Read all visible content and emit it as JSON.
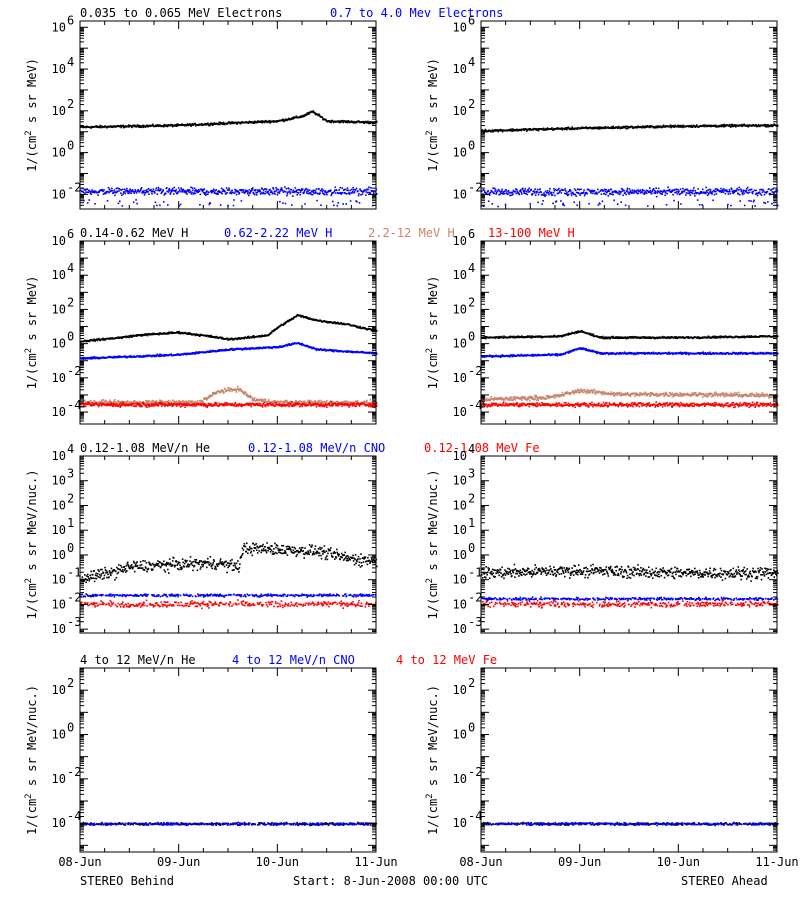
{
  "footer": {
    "left": "STEREO Behind",
    "center": "Start:  8-Jun-2008 00:00 UTC",
    "right": "STEREO Ahead"
  },
  "colors": {
    "black": "#000000",
    "blue": "#0000ff",
    "tan": "#c8846c",
    "red": "#ff0000"
  },
  "chart_data": [
    {
      "type": "scatter",
      "panel": "electrons",
      "legend": [
        {
          "label": "0.035 to 0.065 MeV Electrons",
          "color": "#000000"
        },
        {
          "label": "0.7 to 4.0 Mev Electrons",
          "color": "#0000ff"
        }
      ],
      "ylabel": "1/(cm2 s sr MeV)",
      "yscale": "log",
      "ylim": [
        0.002,
        2000000
      ],
      "ytick_exponents": [
        -2,
        0,
        2,
        4,
        6
      ],
      "x_ticks": [
        "08-Jun",
        "09-Jun",
        "10-Jun",
        "11-Jun"
      ],
      "xlim": [
        "08-Jun",
        "11-Jun"
      ],
      "series": [
        {
          "color": "#000000",
          "level_profile": [
            [
              0,
              18
            ],
            [
              1,
              22
            ],
            [
              1.5,
              28
            ],
            [
              2.0,
              35
            ],
            [
              2.25,
              60
            ],
            [
              2.35,
              100
            ],
            [
              2.5,
              35
            ],
            [
              3,
              30
            ]
          ]
        },
        {
          "color": "#0000ff",
          "level_profile": [
            [
              0,
              0.015
            ],
            [
              3,
              0.015
            ]
          ]
        }
      ]
    },
    {
      "type": "scatter",
      "panel": "electrons",
      "legend": [],
      "ylabel": "1/(cm2 s sr MeV)",
      "yscale": "log",
      "ylim": [
        0.002,
        2000000
      ],
      "ytick_exponents": [
        -2,
        0,
        2,
        4,
        6
      ],
      "x_ticks": [
        "08-Jun",
        "09-Jun",
        "10-Jun",
        "11-Jun"
      ],
      "xlim": [
        "08-Jun",
        "11-Jun"
      ],
      "series": [
        {
          "color": "#000000",
          "level_profile": [
            [
              0,
              12
            ],
            [
              1,
              16
            ],
            [
              2,
              20
            ],
            [
              3,
              22
            ]
          ]
        },
        {
          "color": "#0000ff",
          "level_profile": [
            [
              0,
              0.014
            ],
            [
              3,
              0.015
            ]
          ]
        }
      ]
    },
    {
      "type": "scatter",
      "panel": "protons",
      "legend": [
        {
          "label": "0.14-0.62 MeV H",
          "color": "#000000"
        },
        {
          "label": "0.62-2.22 MeV H",
          "color": "#0000ff"
        },
        {
          "label": "2.2-12 MeV H",
          "color": "#c8846c"
        },
        {
          "label": "13-100 MeV H",
          "color": "#ff0000"
        }
      ],
      "ylabel": "1/(cm2 s sr MeV)",
      "yscale": "log",
      "ylim": [
        2e-05,
        1000000
      ],
      "ytick_exponents": [
        -4,
        -2,
        0,
        2,
        4,
        6
      ],
      "x_ticks": [
        "08-Jun",
        "09-Jun",
        "10-Jun",
        "11-Jun"
      ],
      "xlim": [
        "08-Jun",
        "11-Jun"
      ],
      "series": [
        {
          "color": "#000000",
          "level_profile": [
            [
              0,
              1.5
            ],
            [
              0.4,
              2.5
            ],
            [
              0.6,
              3.5
            ],
            [
              1.0,
              5
            ],
            [
              1.3,
              3
            ],
            [
              1.5,
              2
            ],
            [
              1.7,
              2.5
            ],
            [
              1.9,
              3.5
            ],
            [
              2.0,
              10
            ],
            [
              2.2,
              50
            ],
            [
              2.4,
              25
            ],
            [
              2.7,
              15
            ],
            [
              3,
              6
            ]
          ]
        },
        {
          "color": "#0000ff",
          "level_profile": [
            [
              0,
              0.15
            ],
            [
              1.0,
              0.25
            ],
            [
              1.5,
              0.5
            ],
            [
              2.0,
              0.7
            ],
            [
              2.2,
              1.2
            ],
            [
              2.4,
              0.5
            ],
            [
              3,
              0.3
            ]
          ]
        },
        {
          "color": "#c8846c",
          "level_profile": [
            [
              0,
              0.0004
            ],
            [
              1.2,
              0.0004
            ],
            [
              1.4,
              0.0018
            ],
            [
              1.6,
              0.0025
            ],
            [
              1.75,
              0.0006
            ],
            [
              2,
              0.0004
            ],
            [
              3,
              0.0004
            ]
          ]
        },
        {
          "color": "#ff0000",
          "level_profile": [
            [
              0,
              0.0003
            ],
            [
              3,
              0.0003
            ]
          ]
        }
      ]
    },
    {
      "type": "scatter",
      "panel": "protons",
      "legend": [],
      "ylabel": "1/(cm2 s sr MeV)",
      "yscale": "log",
      "ylim": [
        2e-05,
        1000000
      ],
      "ytick_exponents": [
        -4,
        -2,
        0,
        2,
        4,
        6
      ],
      "x_ticks": [
        "08-Jun",
        "09-Jun",
        "10-Jun",
        "11-Jun"
      ],
      "xlim": [
        "08-Jun",
        "11-Jun"
      ],
      "series": [
        {
          "color": "#000000",
          "level_profile": [
            [
              0,
              2.5
            ],
            [
              0.8,
              3
            ],
            [
              1.0,
              6
            ],
            [
              1.2,
              2.5
            ],
            [
              2,
              2.5
            ],
            [
              3,
              3
            ]
          ]
        },
        {
          "color": "#0000ff",
          "level_profile": [
            [
              0,
              0.2
            ],
            [
              0.8,
              0.25
            ],
            [
              1.0,
              0.6
            ],
            [
              1.2,
              0.3
            ],
            [
              3,
              0.3
            ]
          ]
        },
        {
          "color": "#c8846c",
          "level_profile": [
            [
              0,
              0.0006
            ],
            [
              0.7,
              0.0008
            ],
            [
              1.0,
              0.002
            ],
            [
              1.4,
              0.0012
            ],
            [
              2.2,
              0.0012
            ],
            [
              3,
              0.001
            ]
          ]
        },
        {
          "color": "#ff0000",
          "level_profile": [
            [
              0,
              0.0003
            ],
            [
              3,
              0.0003
            ]
          ]
        }
      ]
    },
    {
      "type": "scatter",
      "panel": "heavy-low",
      "legend": [
        {
          "label": "0.12-1.08 MeV/n He",
          "color": "#000000"
        },
        {
          "label": "0.12-1.08 MeV/n CNO",
          "color": "#0000ff"
        },
        {
          "label": "0.12-1.08 MeV Fe",
          "color": "#ff0000"
        }
      ],
      "ylabel": "1/(cm2 s sr MeV/nuc.)",
      "yscale": "log",
      "ylim": [
        0.0007,
        10000
      ],
      "ytick_exponents": [
        -3,
        -2,
        -1,
        0,
        1,
        2,
        3,
        4
      ],
      "x_ticks": [
        "08-Jun",
        "09-Jun",
        "10-Jun",
        "11-Jun"
      ],
      "xlim": [
        "08-Jun",
        "11-Jun"
      ],
      "series": [
        {
          "color": "#000000",
          "level_profile": [
            [
              0,
              0.12
            ],
            [
              0.3,
              0.2
            ],
            [
              0.5,
              0.35
            ],
            [
              1.0,
              0.45
            ],
            [
              1.4,
              0.5
            ],
            [
              1.6,
              0.35
            ],
            [
              1.65,
              2.0
            ],
            [
              2.0,
              1.8
            ],
            [
              2.4,
              1.5
            ],
            [
              2.7,
              0.8
            ],
            [
              3,
              0.6
            ]
          ]
        },
        {
          "color": "#0000ff",
          "level_profile": [
            [
              0,
              0.025
            ],
            [
              3,
              0.025
            ]
          ]
        },
        {
          "color": "#ff0000",
          "level_profile": [
            [
              0,
              0.011
            ],
            [
              3,
              0.011
            ]
          ]
        }
      ]
    },
    {
      "type": "scatter",
      "panel": "heavy-low",
      "legend": [],
      "ylabel": "1/(cm2 s sr MeV/nuc.)",
      "yscale": "log",
      "ylim": [
        0.0007,
        10000
      ],
      "ytick_exponents": [
        -3,
        -2,
        -1,
        0,
        1,
        2,
        3,
        4
      ],
      "x_ticks": [
        "08-Jun",
        "09-Jun",
        "10-Jun",
        "11-Jun"
      ],
      "xlim": [
        "08-Jun",
        "11-Jun"
      ],
      "series": [
        {
          "color": "#000000",
          "level_profile": [
            [
              0,
              0.2
            ],
            [
              1,
              0.25
            ],
            [
              2,
              0.2
            ],
            [
              3,
              0.2
            ]
          ]
        },
        {
          "color": "#0000ff",
          "level_profile": [
            [
              0,
              0.018
            ],
            [
              3,
              0.018
            ]
          ]
        },
        {
          "color": "#ff0000",
          "level_profile": [
            [
              0,
              0.011
            ],
            [
              3,
              0.011
            ]
          ]
        }
      ]
    },
    {
      "type": "scatter",
      "panel": "heavy-high",
      "legend": [
        {
          "label": "4 to 12 MeV/n He",
          "color": "#000000"
        },
        {
          "label": "4 to 12 MeV/n CNO",
          "color": "#0000ff"
        },
        {
          "label": "4 to 12 MeV Fe",
          "color": "#ff0000"
        }
      ],
      "ylabel": "1/(cm2 s sr MeV/nuc.)",
      "yscale": "log",
      "ylim": [
        5e-06,
        1000
      ],
      "ytick_exponents": [
        -4,
        -2,
        0,
        2
      ],
      "x_ticks": [
        "08-Jun",
        "09-Jun",
        "10-Jun",
        "11-Jun"
      ],
      "xlim": [
        "08-Jun",
        "11-Jun"
      ],
      "series": [
        {
          "color": "#000000",
          "level_profile": [
            [
              0,
              0.0001
            ],
            [
              3,
              0.0001
            ]
          ]
        },
        {
          "color": "#0000ff",
          "level_profile": [
            [
              0,
              0.0001
            ],
            [
              3,
              0.0001
            ]
          ]
        }
      ]
    },
    {
      "type": "scatter",
      "panel": "heavy-high",
      "legend": [],
      "ylabel": "1/(cm2 s sr MeV/nuc.)",
      "yscale": "log",
      "ylim": [
        5e-06,
        1000
      ],
      "ytick_exponents": [
        -4,
        -2,
        0,
        2
      ],
      "x_ticks": [
        "08-Jun",
        "09-Jun",
        "10-Jun",
        "11-Jun"
      ],
      "xlim": [
        "08-Jun",
        "11-Jun"
      ],
      "series": [
        {
          "color": "#000000",
          "level_profile": [
            [
              0,
              0.0001
            ],
            [
              3,
              0.0001
            ]
          ]
        },
        {
          "color": "#0000ff",
          "level_profile": [
            [
              0,
              0.0001
            ],
            [
              3,
              0.0001
            ]
          ]
        }
      ]
    }
  ]
}
